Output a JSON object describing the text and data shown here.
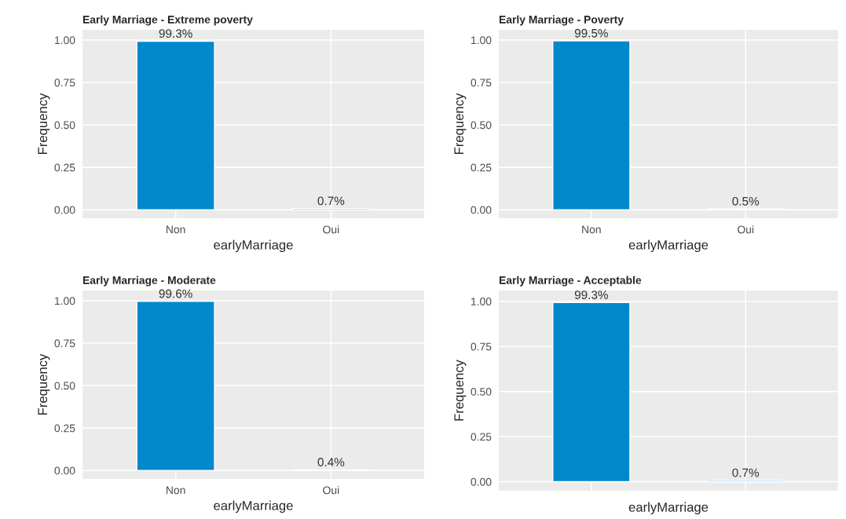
{
  "chart_data": [
    {
      "type": "bar",
      "title": "Early Marriage - Extreme poverty",
      "xlabel": "earlyMarriage",
      "ylabel": "Frequency",
      "categories": [
        "Non",
        "Oui"
      ],
      "values": [
        0.993,
        0.007
      ],
      "value_labels": [
        "99.3%",
        "0.7%"
      ],
      "color": "#0088cc",
      "ylim": [
        -0.05,
        1.06
      ],
      "yticks": [
        {
          "value": 0,
          "label": "0.00"
        },
        {
          "value": 0.25,
          "label": "0.25"
        },
        {
          "value": 0.5,
          "label": "0.50"
        },
        {
          "value": 0.75,
          "label": "0.75"
        },
        {
          "value": 1,
          "label": "1.00"
        }
      ],
      "grid": true
    },
    {
      "type": "bar",
      "title": "Early Marriage - Poverty",
      "xlabel": "earlyMarriage",
      "ylabel": "Frequency",
      "categories": [
        "Non",
        "Oui"
      ],
      "values": [
        0.995,
        0.005
      ],
      "value_labels": [
        "99.5%",
        "0.5%"
      ],
      "color": "#0088cc",
      "ylim": [
        -0.05,
        1.06
      ],
      "yticks": [
        {
          "value": 0,
          "label": "0.00"
        },
        {
          "value": 0.25,
          "label": "0.25"
        },
        {
          "value": 0.5,
          "label": "0.50"
        },
        {
          "value": 0.75,
          "label": "0.75"
        },
        {
          "value": 1,
          "label": "1.00"
        }
      ],
      "grid": true
    },
    {
      "type": "bar",
      "title": "Early Marriage - Moderate",
      "xlabel": "earlyMarriage",
      "ylabel": "Frequency",
      "categories": [
        "Non",
        "Oui"
      ],
      "values": [
        0.996,
        0.004
      ],
      "value_labels": [
        "99.6%",
        "0.4%"
      ],
      "color": "#0088cc",
      "ylim": [
        -0.05,
        1.06
      ],
      "yticks": [
        {
          "value": 0,
          "label": "0.00"
        },
        {
          "value": 0.25,
          "label": "0.25"
        },
        {
          "value": 0.5,
          "label": "0.50"
        },
        {
          "value": 0.75,
          "label": "0.75"
        },
        {
          "value": 1,
          "label": "1.00"
        }
      ],
      "grid": true
    },
    {
      "type": "bar",
      "title": "Early Marriage - Acceptable",
      "xlabel": "earlyMarriage",
      "ylabel": "Frequency",
      "categories": [
        null,
        null
      ],
      "values": [
        0.993,
        0.007
      ],
      "value_labels": [
        "99.3%",
        "0.7%"
      ],
      "color": "#0088cc",
      "ylim": [
        -0.05,
        1.06
      ],
      "yticks": [
        {
          "value": 0,
          "label": "0.00"
        },
        {
          "value": 0.25,
          "label": "0.25"
        },
        {
          "value": 0.5,
          "label": "0.50"
        },
        {
          "value": 0.75,
          "label": "0.75"
        },
        {
          "value": 1,
          "label": "1.00"
        }
      ],
      "grid": true,
      "tick_labels": "y"
    }
  ]
}
